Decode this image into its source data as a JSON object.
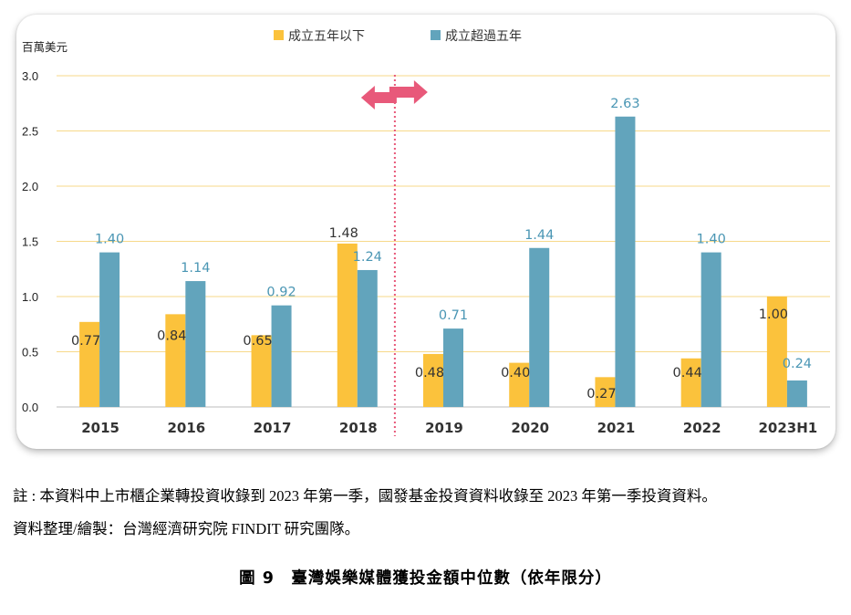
{
  "chart_data": {
    "type": "bar",
    "ylabel": "百萬美元",
    "ylim": [
      0,
      3.0
    ],
    "yticks": [
      "0.0",
      "0.5",
      "1.0",
      "1.5",
      "2.0",
      "2.5",
      "3.0"
    ],
    "categories": [
      "2015",
      "2016",
      "2017",
      "2018",
      "2019",
      "2020",
      "2021",
      "2022",
      "2023H1"
    ],
    "series": [
      {
        "name": "成立五年以下",
        "color": "#FBC23C",
        "label_color": "#333333",
        "values": [
          0.77,
          0.84,
          0.65,
          1.48,
          0.48,
          0.4,
          0.27,
          0.44,
          1.0
        ],
        "labels": [
          "0.77",
          "0.84",
          "0.65",
          "1.48",
          "0.48",
          "0.40",
          "0.27",
          "0.44",
          "1.00"
        ]
      },
      {
        "name": "成立超過五年",
        "color": "#62A4BC",
        "label_color": "#4A96B4",
        "values": [
          1.4,
          1.14,
          0.92,
          1.24,
          0.71,
          1.44,
          2.63,
          1.4,
          0.24
        ],
        "labels": [
          "1.40",
          "1.14",
          "0.92",
          "1.24",
          "0.71",
          "1.44",
          "2.63",
          "1.40",
          "0.24"
        ]
      }
    ],
    "legend_position": "top-center",
    "grid": true,
    "grid_color": "#F7D98A",
    "divider": {
      "between": [
        "2018",
        "2019"
      ],
      "color": "#E8597A",
      "style": "dotted",
      "marker": "double-arrow"
    }
  },
  "notes": [
    "註 : 本資料中上市櫃企業轉投資收錄到 2023 年第一季，國發基金投資資料收錄至 2023 年第一季投資資料。",
    "資料整理/繪製：台灣經濟研究院 FINDIT 研究團隊。"
  ],
  "caption": "圖 9　臺灣娛樂媒體獲投金額中位數（依年限分）"
}
